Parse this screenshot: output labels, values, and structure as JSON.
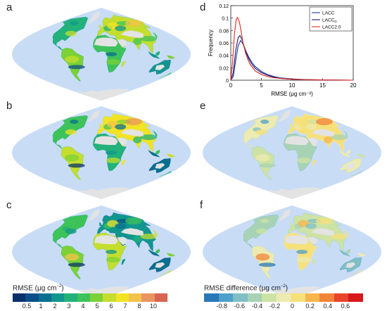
{
  "panels": {
    "a": "a",
    "b": "b",
    "c": "c",
    "d": "d",
    "e": "e",
    "f": "f"
  },
  "colors": {
    "ocean": "#c8dcf6",
    "ice": "#e3e3e3",
    "rmse_scale": [
      "#08306b",
      "#0b4f8a",
      "#0a6f8f",
      "#11968e",
      "#22b27a",
      "#3dc35a",
      "#7cd136",
      "#c5de2e",
      "#f2e324",
      "#f3c34b",
      "#e9955f",
      "#d96452"
    ],
    "diff_scale": [
      "#2a78b8",
      "#4e9fcb",
      "#7fbfc5",
      "#a7d3b4",
      "#cde3a5",
      "#ecebb2",
      "#f6e07a",
      "#f7b64c",
      "#f2843a",
      "#e8452a",
      "#d7191c"
    ]
  },
  "chart_data": [
    {
      "type": "line",
      "panel": "d",
      "xlabel": "RMSE (μg cm⁻²)",
      "ylabel": "Frequency",
      "xlim": [
        0,
        20
      ],
      "ylim": [
        0,
        0.12
      ],
      "xticks": [
        0,
        5,
        10,
        15,
        20
      ],
      "yticks": [
        0,
        0.02,
        0.04,
        0.06,
        0.08,
        0.1,
        0.12
      ],
      "ytick_labels": [
        "0",
        "0.02",
        "0.04",
        "0.06",
        "0.08",
        "0.1",
        "0.12"
      ],
      "legend_position": "top-right",
      "series": [
        {
          "name": "LACC",
          "color": "#1f3a93",
          "x": [
            0,
            0.4,
            0.8,
            1.2,
            1.6,
            2.0,
            2.5,
            3,
            3.5,
            4,
            5,
            6,
            7,
            8,
            10,
            12,
            15,
            20
          ],
          "y": [
            0,
            0.006,
            0.032,
            0.055,
            0.064,
            0.058,
            0.046,
            0.036,
            0.028,
            0.022,
            0.014,
            0.009,
            0.006,
            0.004,
            0.002,
            0.001,
            0.0004,
            0
          ]
        },
        {
          "name": "LACC",
          "sub": "D",
          "color": "#1a1a80",
          "x": [
            0,
            0.4,
            0.8,
            1.2,
            1.5,
            1.8,
            2.2,
            2.6,
            3,
            3.5,
            4,
            5,
            6,
            7,
            8,
            10,
            12,
            15,
            20
          ],
          "y": [
            0,
            0.012,
            0.048,
            0.068,
            0.072,
            0.066,
            0.054,
            0.042,
            0.033,
            0.025,
            0.019,
            0.012,
            0.008,
            0.005,
            0.003,
            0.0015,
            0.0008,
            0.0003,
            0
          ]
        },
        {
          "name": "LACC2.0",
          "color": "#e8281e",
          "x": [
            0,
            0.3,
            0.6,
            0.9,
            1.1,
            1.4,
            1.7,
            2.0,
            2.4,
            2.8,
            3.2,
            4,
            5,
            6,
            7,
            8,
            10,
            12,
            15,
            20
          ],
          "y": [
            0,
            0.03,
            0.075,
            0.098,
            0.101,
            0.094,
            0.078,
            0.06,
            0.044,
            0.033,
            0.025,
            0.015,
            0.009,
            0.006,
            0.004,
            0.003,
            0.0015,
            0.0008,
            0.0003,
            0
          ]
        }
      ]
    }
  ],
  "colorbars": {
    "rmse": {
      "title_main": "RMSE (μg cm",
      "title_exp": "−2",
      "title_close": ")",
      "ticks": [
        "0.5",
        "1",
        "2",
        "3",
        "4",
        "5",
        "6",
        "7",
        "8",
        "10"
      ]
    },
    "diff": {
      "title_main": "RMSE difference (μg cm",
      "title_exp": "−2",
      "title_close": ")",
      "ticks": [
        "-0.8",
        "-0.6",
        "-0.4",
        "-0.2",
        "0",
        "0.2",
        "0.4",
        "0.6"
      ]
    }
  },
  "maps": {
    "a": {
      "scheme": "rmse",
      "land_levels": [
        4,
        6,
        7,
        5,
        3
      ]
    },
    "b": {
      "scheme": "rmse",
      "land_levels": [
        5,
        7,
        8,
        4,
        2
      ]
    },
    "c": {
      "scheme": "rmse",
      "land_levels": [
        5,
        6,
        3,
        7,
        2
      ]
    },
    "e": {
      "scheme": "diff",
      "land_levels": [
        5,
        4,
        6,
        3,
        5
      ]
    },
    "f": {
      "scheme": "diff",
      "land_levels": [
        3,
        5,
        4,
        6,
        2
      ]
    }
  }
}
